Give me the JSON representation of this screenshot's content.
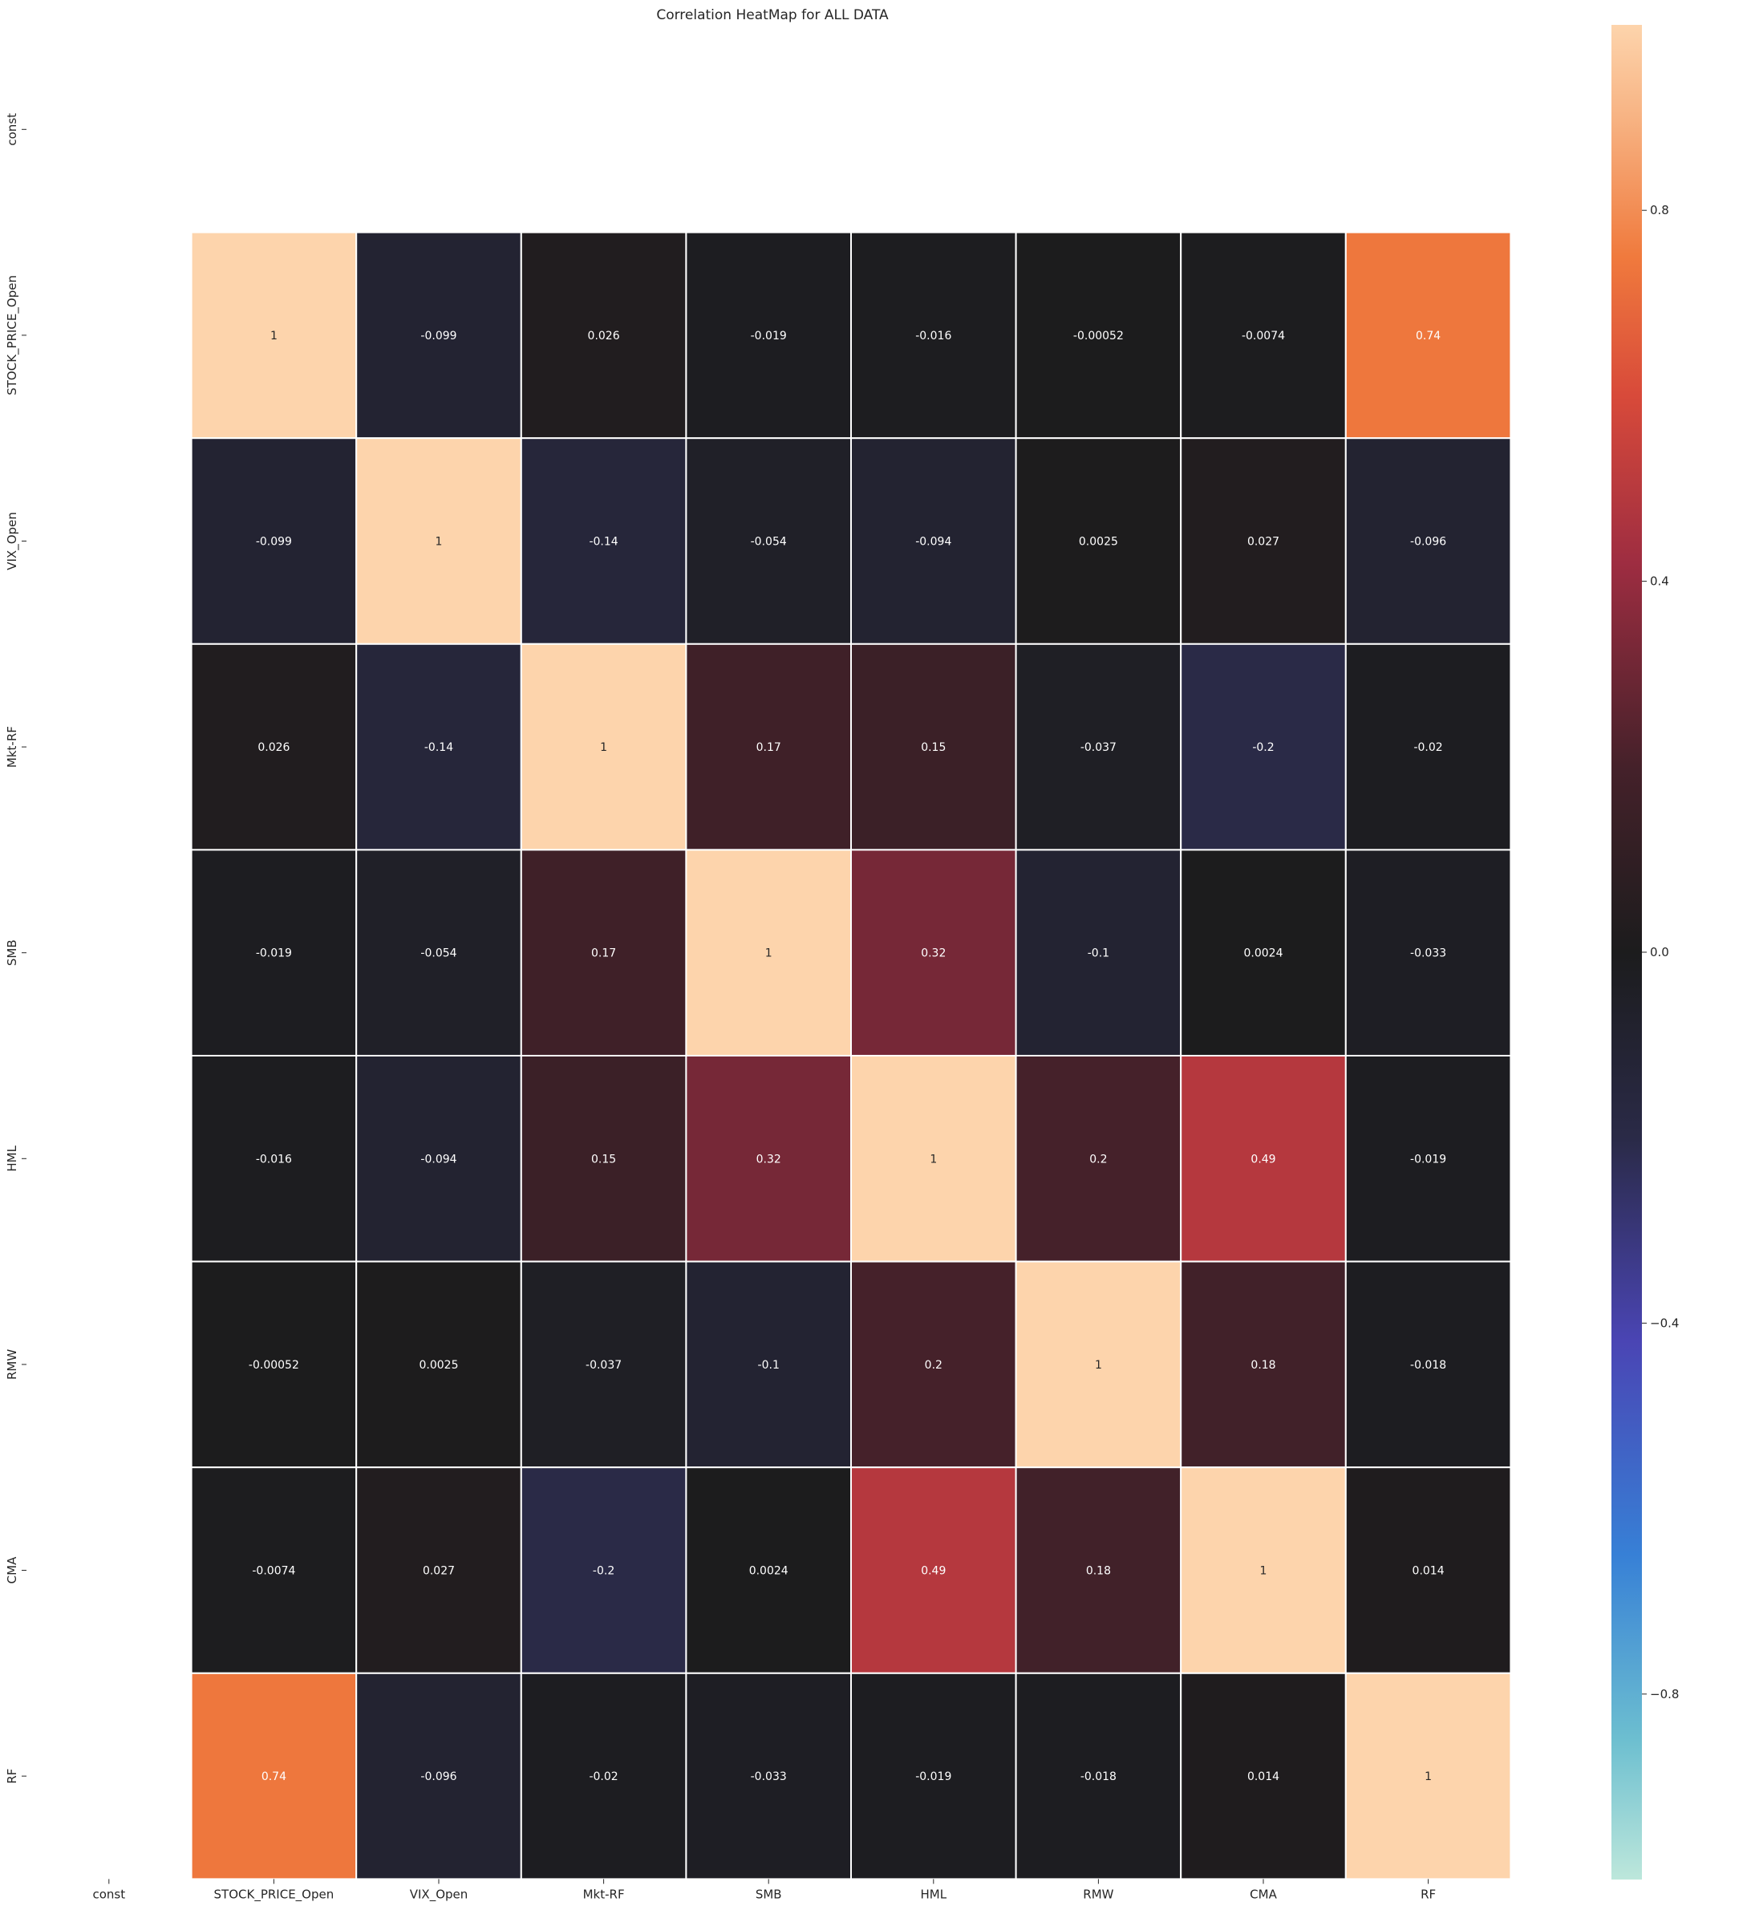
{
  "chart_data": {
    "type": "heatmap",
    "title": "Correlation HeatMap for ALL DATA",
    "xlabel": "",
    "ylabel": "",
    "x_labels": [
      "const",
      "STOCK_PRICE_Open",
      "VIX_Open",
      "Mkt-RF",
      "SMB",
      "HML",
      "RMW",
      "CMA",
      "RF"
    ],
    "y_labels": [
      "const",
      "STOCK_PRICE_Open",
      "VIX_Open",
      "Mkt-RF",
      "SMB",
      "HML",
      "RMW",
      "CMA",
      "RF"
    ],
    "values": [
      [
        null,
        null,
        null,
        null,
        null,
        null,
        null,
        null,
        null
      ],
      [
        null,
        1,
        -0.099,
        0.026,
        -0.019,
        -0.016,
        -0.00052,
        -0.0074,
        0.74
      ],
      [
        null,
        -0.099,
        1,
        -0.14,
        -0.054,
        -0.094,
        0.0025,
        0.027,
        -0.096
      ],
      [
        null,
        0.026,
        -0.14,
        1,
        0.17,
        0.15,
        -0.037,
        -0.2,
        -0.02
      ],
      [
        null,
        -0.019,
        -0.054,
        0.17,
        1,
        0.32,
        -0.1,
        0.0024,
        -0.033
      ],
      [
        null,
        -0.016,
        -0.094,
        0.15,
        0.32,
        1,
        0.2,
        0.49,
        -0.019
      ],
      [
        null,
        -0.00052,
        0.0025,
        -0.037,
        -0.1,
        0.2,
        1,
        0.18,
        -0.018
      ],
      [
        null,
        -0.0074,
        0.027,
        -0.2,
        0.0024,
        0.49,
        0.18,
        1,
        0.014
      ],
      [
        null,
        0.74,
        -0.096,
        -0.02,
        -0.033,
        -0.019,
        -0.018,
        0.014,
        1
      ]
    ],
    "annotations": [
      [
        null,
        null,
        null,
        null,
        null,
        null,
        null,
        null,
        null
      ],
      [
        null,
        "1",
        "-0.099",
        "0.026",
        "-0.019",
        "-0.016",
        "-0.00052",
        "-0.0074",
        "0.74"
      ],
      [
        null,
        "-0.099",
        "1",
        "-0.14",
        "-0.054",
        "-0.094",
        "0.0025",
        "0.027",
        "-0.096"
      ],
      [
        null,
        "0.026",
        "-0.14",
        "1",
        "0.17",
        "0.15",
        "-0.037",
        "-0.2",
        "-0.02"
      ],
      [
        null,
        "-0.019",
        "-0.054",
        "0.17",
        "1",
        "0.32",
        "-0.1",
        "0.0024",
        "-0.033"
      ],
      [
        null,
        "-0.016",
        "-0.094",
        "0.15",
        "0.32",
        "1",
        "0.2",
        "0.49",
        "-0.019"
      ],
      [
        null,
        "-0.00052",
        "0.0025",
        "-0.037",
        "-0.1",
        "0.2",
        "1",
        "0.18",
        "-0.018"
      ],
      [
        null,
        "-0.0074",
        "0.027",
        "-0.2",
        "0.0024",
        "0.49",
        "0.18",
        "1",
        "0.014"
      ],
      [
        null,
        "0.74",
        "-0.096",
        "-0.02",
        "-0.033",
        "-0.019",
        "-0.018",
        "0.014",
        "1"
      ]
    ],
    "colormap": "icefire",
    "vmin": -1,
    "vmax": 1,
    "colorbar_ticks": [
      0.8,
      0.4,
      0.0,
      -0.4,
      -0.8
    ],
    "colorbar_tick_labels": [
      "0.8",
      "0.4",
      "0.0",
      "−0.4",
      "−0.8"
    ],
    "colorbar_stops": [
      {
        "value": -1.0,
        "color": "#bde7db"
      },
      {
        "value": -0.85,
        "color": "#6dbfd0"
      },
      {
        "value": -0.65,
        "color": "#3780d6"
      },
      {
        "value": -0.42,
        "color": "#4a45b4"
      },
      {
        "value": -0.2,
        "color": "#2a2a47"
      },
      {
        "value": 0.0,
        "color": "#1c1c1d"
      },
      {
        "value": 0.2,
        "color": "#45212a"
      },
      {
        "value": 0.42,
        "color": "#9e2d41"
      },
      {
        "value": 0.6,
        "color": "#d84a3a"
      },
      {
        "value": 0.75,
        "color": "#f07a3d"
      },
      {
        "value": 0.9,
        "color": "#f7b383"
      },
      {
        "value": 1.0,
        "color": "#fdd4ac"
      }
    ],
    "annotation_light_color": "#ffffff",
    "annotation_dark_color": "#262626",
    "cell_border_color": "#ffffff",
    "grid": false,
    "legend": "colorbar-right"
  }
}
